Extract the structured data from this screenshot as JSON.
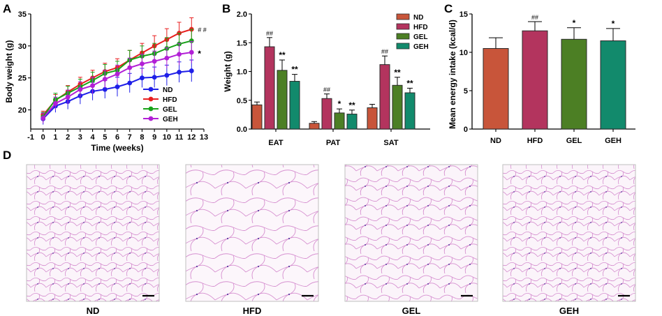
{
  "panel_labels": {
    "a": "A",
    "b": "B",
    "c": "C",
    "d": "D"
  },
  "chart_data": [
    {
      "type": "line",
      "panel": "A",
      "xlabel": "Time (weeks)",
      "ylabel": "Body weight (g)",
      "xlim": [
        -1,
        13
      ],
      "ylim": [
        17,
        35
      ],
      "x_ticks": [
        "-1",
        "0",
        "1",
        "2",
        "3",
        "4",
        "5",
        "6",
        "7",
        "8",
        "9",
        "10",
        "11",
        "12",
        "13"
      ],
      "y_ticks": [
        "20",
        "25",
        "30",
        "35"
      ],
      "x": [
        0,
        1,
        2,
        3,
        4,
        5,
        6,
        7,
        8,
        9,
        10,
        11,
        12
      ],
      "series": [
        {
          "name": "ND",
          "color": "#1f1fe8",
          "values": [
            18.6,
            20.6,
            21.3,
            22.2,
            22.9,
            23.2,
            23.6,
            24.2,
            25.0,
            25.1,
            25.4,
            25.9,
            26.1
          ],
          "err": [
            0.9,
            1.0,
            1.2,
            1.3,
            1.4,
            1.4,
            1.5,
            1.5,
            1.5,
            1.6,
            1.6,
            1.6,
            1.7
          ]
        },
        {
          "name": "HFD",
          "color": "#e81f1f",
          "values": [
            19.2,
            21.5,
            22.8,
            24.0,
            25.0,
            26.0,
            26.6,
            27.8,
            28.9,
            30.0,
            31.0,
            32.0,
            32.6
          ],
          "err": [
            0.6,
            0.9,
            1.0,
            1.1,
            1.2,
            1.3,
            1.4,
            1.5,
            1.5,
            1.6,
            1.7,
            1.7,
            1.8
          ]
        },
        {
          "name": "GEL",
          "color": "#19a319",
          "values": [
            18.9,
            21.6,
            22.6,
            23.6,
            24.6,
            25.7,
            26.2,
            27.8,
            28.4,
            28.8,
            29.6,
            30.3,
            30.8
          ],
          "err": [
            0.7,
            1.0,
            1.1,
            1.2,
            1.3,
            1.4,
            1.4,
            1.5,
            1.6,
            1.6,
            1.7,
            1.7,
            1.8
          ]
        },
        {
          "name": "GEH",
          "color": "#b21fd6",
          "values": [
            18.7,
            21.0,
            22.0,
            23.2,
            23.8,
            24.8,
            25.6,
            26.6,
            27.2,
            27.6,
            28.1,
            28.7,
            29.0
          ],
          "err": [
            0.8,
            1.0,
            1.1,
            1.2,
            1.3,
            1.4,
            1.4,
            1.5,
            1.5,
            1.6,
            1.6,
            1.7,
            1.7
          ]
        }
      ],
      "annotations": [
        {
          "text": "# #",
          "series": "HFD"
        },
        {
          "text": "*",
          "series": "GEH"
        }
      ]
    },
    {
      "type": "bar",
      "panel": "B",
      "ylabel": "Weight (g)",
      "ylim": [
        0,
        2.0
      ],
      "y_ticks": [
        "0.0",
        "0.5",
        "1.0",
        "1.5",
        "2.0"
      ],
      "categories": [
        "EAT",
        "PAT",
        "SAT"
      ],
      "series": [
        {
          "name": "ND",
          "color": "#c8553a",
          "values": [
            0.42,
            0.1,
            0.37
          ],
          "err": [
            0.05,
            0.03,
            0.06
          ],
          "sig": [
            "",
            "",
            ""
          ]
        },
        {
          "name": "HFD",
          "color": "#b3345e",
          "values": [
            1.43,
            0.53,
            1.12
          ],
          "err": [
            0.16,
            0.08,
            0.15
          ],
          "sig": [
            "##",
            "##",
            "##"
          ]
        },
        {
          "name": "GEL",
          "color": "#4c7f24",
          "values": [
            1.02,
            0.28,
            0.76
          ],
          "err": [
            0.18,
            0.07,
            0.14
          ],
          "sig": [
            "**",
            "*",
            "**"
          ]
        },
        {
          "name": "GEH",
          "color": "#128a6c",
          "values": [
            0.83,
            0.26,
            0.63
          ],
          "err": [
            0.12,
            0.07,
            0.08
          ],
          "sig": [
            "**",
            "**",
            "**"
          ]
        }
      ]
    },
    {
      "type": "bar",
      "panel": "C",
      "ylabel": "Mean energy intake (kcal/d)",
      "ylim": [
        0,
        15
      ],
      "y_ticks": [
        "0",
        "5",
        "10",
        "15"
      ],
      "categories": [
        "ND",
        "HFD",
        "GEL",
        "GEH"
      ],
      "colors": [
        "#c8553a",
        "#b3345e",
        "#4c7f24",
        "#128a6c"
      ],
      "values": [
        10.5,
        12.8,
        11.7,
        11.5
      ],
      "err": [
        1.4,
        1.2,
        1.5,
        1.6
      ],
      "sig": [
        "",
        "##",
        "*",
        "*"
      ]
    }
  ],
  "micrographs": {
    "labels": [
      "ND",
      "HFD",
      "GEL",
      "GEH"
    ]
  }
}
